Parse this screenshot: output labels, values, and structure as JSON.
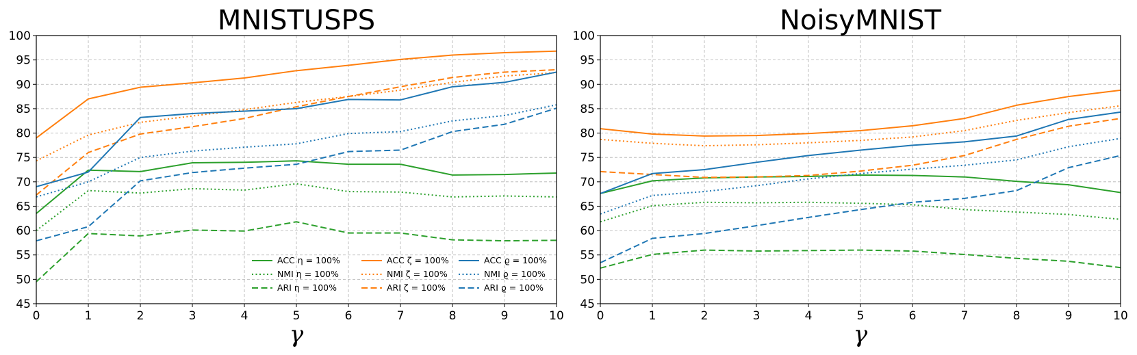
{
  "chart_data": [
    {
      "type": "line",
      "title": "MNISTUSPS",
      "xlabel": "γ",
      "ylabel": "",
      "xlim": [
        0,
        10
      ],
      "ylim": [
        45,
        100
      ],
      "x": [
        0,
        1,
        2,
        3,
        4,
        5,
        6,
        7,
        8,
        9,
        10
      ],
      "xticks": [
        "0",
        "1",
        "2",
        "3",
        "4",
        "5",
        "6",
        "7",
        "8",
        "9",
        "10"
      ],
      "yticks": [
        "45",
        "50",
        "55",
        "60",
        "65",
        "70",
        "75",
        "80",
        "85",
        "90",
        "95",
        "100"
      ],
      "grid": true,
      "legend_position": "lower-right",
      "series": [
        {
          "name": "ACC η = 100%",
          "color": "#2ca02c",
          "style": "solid",
          "values": [
            63.5,
            72.4,
            72.1,
            73.9,
            74.0,
            74.3,
            73.6,
            73.6,
            71.4,
            71.5,
            71.8
          ]
        },
        {
          "name": "NMI η = 100%",
          "color": "#2ca02c",
          "style": "dotted",
          "values": [
            60.0,
            68.2,
            67.7,
            68.6,
            68.3,
            69.6,
            68.0,
            67.9,
            66.9,
            67.1,
            66.9
          ]
        },
        {
          "name": "ARI η = 100%",
          "color": "#2ca02c",
          "style": "dashed",
          "values": [
            49.5,
            59.4,
            58.9,
            60.1,
            59.9,
            61.8,
            59.5,
            59.5,
            58.1,
            57.9,
            58.0
          ]
        },
        {
          "name": "ACC ζ = 100%",
          "color": "#ff7f0e",
          "style": "solid",
          "values": [
            79.0,
            87.0,
            89.4,
            90.3,
            91.3,
            92.8,
            93.9,
            95.1,
            96.0,
            96.5,
            96.8
          ]
        },
        {
          "name": "NMI ζ = 100%",
          "color": "#ff7f0e",
          "style": "dotted",
          "values": [
            74.3,
            79.6,
            82.2,
            83.5,
            84.8,
            86.3,
            87.5,
            88.8,
            90.4,
            91.7,
            92.4
          ]
        },
        {
          "name": "ARI ζ = 100%",
          "color": "#ff7f0e",
          "style": "dashed",
          "values": [
            67.3,
            76.0,
            79.8,
            81.3,
            83.0,
            85.4,
            87.5,
            89.5,
            91.4,
            92.5,
            93.0
          ]
        },
        {
          "name": "ACC ϱ = 100%",
          "color": "#1f77b4",
          "style": "solid",
          "values": [
            69.0,
            72.0,
            83.2,
            84.0,
            84.5,
            85.0,
            86.9,
            86.8,
            89.5,
            90.4,
            92.5
          ]
        },
        {
          "name": "NMI ϱ = 100%",
          "color": "#1f77b4",
          "style": "dotted",
          "values": [
            66.9,
            70.0,
            75.0,
            76.3,
            77.1,
            77.8,
            79.9,
            80.3,
            82.5,
            83.6,
            85.8
          ]
        },
        {
          "name": "ARI ϱ = 100%",
          "color": "#1f77b4",
          "style": "dashed",
          "values": [
            57.9,
            60.8,
            70.2,
            71.9,
            72.8,
            73.6,
            76.2,
            76.5,
            80.3,
            81.8,
            85.1
          ]
        }
      ]
    },
    {
      "type": "line",
      "title": "NoisyMNIST",
      "xlabel": "γ",
      "ylabel": "",
      "xlim": [
        0,
        10
      ],
      "ylim": [
        45,
        100
      ],
      "x": [
        0,
        1,
        2,
        3,
        4,
        5,
        6,
        7,
        8,
        9,
        10
      ],
      "xticks": [
        "0",
        "1",
        "2",
        "3",
        "4",
        "5",
        "6",
        "7",
        "8",
        "9",
        "10"
      ],
      "yticks": [
        "45",
        "50",
        "55",
        "60",
        "65",
        "70",
        "75",
        "80",
        "85",
        "90",
        "95",
        "100"
      ],
      "grid": true,
      "series": [
        {
          "name": "ACC η = 100%",
          "color": "#2ca02c",
          "style": "solid",
          "values": [
            67.6,
            70.2,
            70.8,
            71.0,
            71.1,
            71.4,
            71.3,
            71.0,
            70.1,
            69.4,
            67.8
          ]
        },
        {
          "name": "NMI η = 100%",
          "color": "#2ca02c",
          "style": "dotted",
          "values": [
            61.8,
            65.1,
            65.8,
            65.7,
            65.8,
            65.6,
            65.3,
            64.3,
            63.8,
            63.3,
            62.3
          ]
        },
        {
          "name": "ARI η = 100%",
          "color": "#2ca02c",
          "style": "dashed",
          "values": [
            52.3,
            55.1,
            56.0,
            55.8,
            55.9,
            56.0,
            55.8,
            55.1,
            54.3,
            53.7,
            52.4
          ]
        },
        {
          "name": "ACC ζ = 100%",
          "color": "#ff7f0e",
          "style": "solid",
          "values": [
            80.9,
            79.8,
            79.4,
            79.5,
            79.9,
            80.5,
            81.5,
            83.0,
            85.7,
            87.5,
            88.8
          ]
        },
        {
          "name": "NMI ζ = 100%",
          "color": "#ff7f0e",
          "style": "dotted",
          "values": [
            78.7,
            77.9,
            77.4,
            77.6,
            78.0,
            78.5,
            79.2,
            80.5,
            82.6,
            84.2,
            85.6
          ]
        },
        {
          "name": "ARI ζ = 100%",
          "color": "#ff7f0e",
          "style": "dashed",
          "values": [
            72.1,
            71.5,
            70.9,
            71.0,
            71.3,
            72.2,
            73.4,
            75.4,
            78.7,
            81.4,
            83.0
          ]
        },
        {
          "name": "ACC ϱ = 100%",
          "color": "#1f77b4",
          "style": "solid",
          "values": [
            67.6,
            71.7,
            72.5,
            74.0,
            75.4,
            76.5,
            77.5,
            78.2,
            79.4,
            82.8,
            84.3
          ]
        },
        {
          "name": "NMI ϱ = 100%",
          "color": "#1f77b4",
          "style": "dotted",
          "values": [
            63.4,
            67.2,
            68.0,
            69.2,
            70.6,
            71.7,
            72.6,
            73.4,
            74.5,
            77.2,
            78.9
          ]
        },
        {
          "name": "ARI ϱ = 100%",
          "color": "#1f77b4",
          "style": "dashed",
          "values": [
            53.4,
            58.4,
            59.4,
            61.0,
            62.7,
            64.3,
            65.8,
            66.6,
            68.2,
            72.9,
            75.4
          ]
        }
      ]
    }
  ]
}
